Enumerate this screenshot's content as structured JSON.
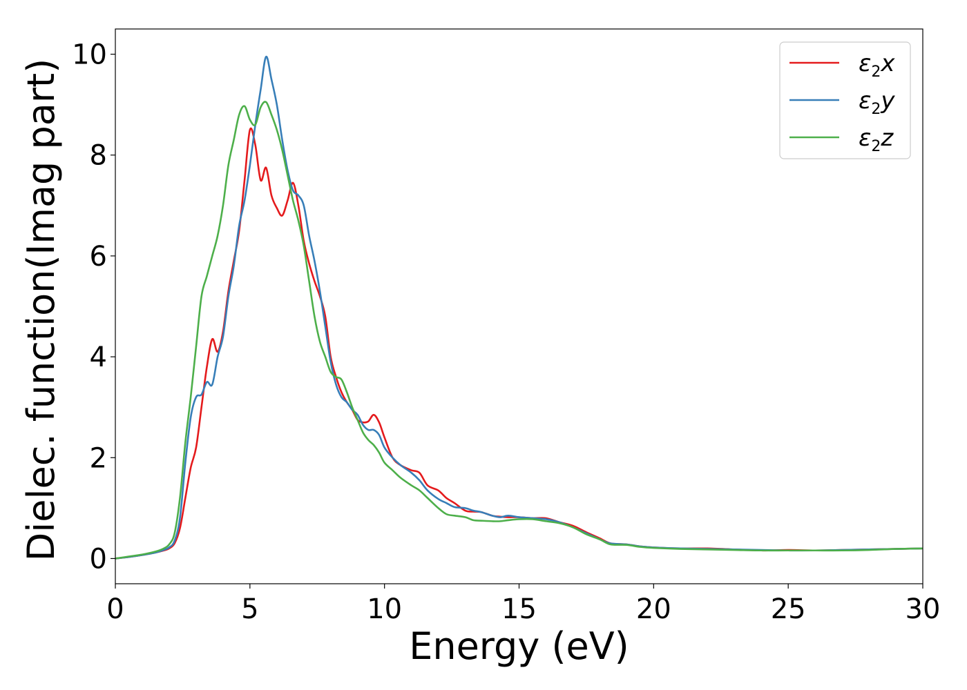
{
  "chart_data": {
    "type": "line",
    "xlabel": "Energy (eV)",
    "ylabel": "Dielec. function(Imag part)",
    "xlim": [
      0,
      30
    ],
    "ylim": [
      -0.5,
      10.5
    ],
    "xticks": [
      0,
      5,
      10,
      15,
      20,
      25,
      30
    ],
    "yticks": [
      0,
      2,
      4,
      6,
      8,
      10
    ],
    "grid": false,
    "legend_position": "top-right",
    "series": [
      {
        "name": "ε2x",
        "legend": {
          "base": "ε",
          "sub": "2",
          "axis": "x"
        },
        "color": "#e41a1c",
        "x": [
          0,
          0.5,
          1,
          1.5,
          1.8,
          2.0,
          2.2,
          2.4,
          2.6,
          2.8,
          3.0,
          3.2,
          3.4,
          3.6,
          3.8,
          4.0,
          4.2,
          4.4,
          4.6,
          4.8,
          5.0,
          5.2,
          5.4,
          5.6,
          5.8,
          6.0,
          6.2,
          6.4,
          6.6,
          6.8,
          7.0,
          7.2,
          7.4,
          7.6,
          7.8,
          8.0,
          8.2,
          8.4,
          8.6,
          8.8,
          9.0,
          9.2,
          9.4,
          9.6,
          9.8,
          10.0,
          10.3,
          10.6,
          11.0,
          11.3,
          11.6,
          12.0,
          12.3,
          12.6,
          13.0,
          13.3,
          13.6,
          14.0,
          14.3,
          14.6,
          15.0,
          15.5,
          16.0,
          16.5,
          17.0,
          17.5,
          18.0,
          18.4,
          19.0,
          19.5,
          20,
          21,
          22,
          23,
          24,
          25,
          26,
          27,
          28,
          29,
          30
        ],
        "values": [
          0,
          0.03,
          0.07,
          0.12,
          0.16,
          0.2,
          0.3,
          0.6,
          1.2,
          1.8,
          2.2,
          3.0,
          3.8,
          4.35,
          4.1,
          4.5,
          5.3,
          5.9,
          6.5,
          7.5,
          8.5,
          8.2,
          7.5,
          7.75,
          7.2,
          6.95,
          6.8,
          7.1,
          7.45,
          7.0,
          6.3,
          5.85,
          5.5,
          5.2,
          4.8,
          4.0,
          3.6,
          3.3,
          3.1,
          2.95,
          2.75,
          2.7,
          2.72,
          2.85,
          2.7,
          2.4,
          2.0,
          1.85,
          1.75,
          1.7,
          1.45,
          1.35,
          1.2,
          1.1,
          0.95,
          0.93,
          0.92,
          0.85,
          0.83,
          0.82,
          0.82,
          0.8,
          0.8,
          0.72,
          0.65,
          0.52,
          0.4,
          0.3,
          0.28,
          0.24,
          0.22,
          0.2,
          0.2,
          0.18,
          0.16,
          0.17,
          0.16,
          0.17,
          0.18,
          0.19,
          0.2
        ]
      },
      {
        "name": "ε2y",
        "legend": {
          "base": "ε",
          "sub": "2",
          "axis": "y"
        },
        "color": "#377eb8",
        "x": [
          0,
          0.5,
          1,
          1.5,
          1.8,
          2.0,
          2.2,
          2.4,
          2.6,
          2.8,
          3.0,
          3.2,
          3.4,
          3.6,
          3.8,
          4.0,
          4.2,
          4.4,
          4.6,
          4.8,
          5.0,
          5.2,
          5.4,
          5.6,
          5.8,
          6.0,
          6.2,
          6.4,
          6.6,
          6.8,
          7.0,
          7.2,
          7.4,
          7.6,
          7.8,
          8.0,
          8.2,
          8.4,
          8.6,
          8.8,
          9.0,
          9.2,
          9.4,
          9.6,
          9.8,
          10.0,
          10.3,
          10.6,
          11.0,
          11.3,
          11.6,
          12.0,
          12.3,
          12.6,
          13.0,
          13.3,
          13.6,
          14.0,
          14.3,
          14.6,
          15.0,
          15.5,
          16.0,
          16.5,
          17.0,
          17.5,
          18.0,
          18.4,
          19.0,
          19.5,
          20,
          21,
          22,
          23,
          24,
          25,
          26,
          27,
          28,
          29,
          30
        ],
        "values": [
          0,
          0.03,
          0.07,
          0.12,
          0.17,
          0.22,
          0.35,
          0.8,
          1.9,
          2.8,
          3.2,
          3.25,
          3.5,
          3.45,
          4.0,
          4.4,
          5.2,
          5.8,
          6.6,
          7.1,
          7.8,
          8.6,
          9.3,
          9.95,
          9.5,
          9.0,
          8.3,
          7.7,
          7.3,
          7.2,
          7.0,
          6.4,
          5.9,
          5.3,
          4.6,
          3.9,
          3.45,
          3.2,
          3.1,
          2.95,
          2.85,
          2.65,
          2.55,
          2.55,
          2.45,
          2.2,
          2.0,
          1.85,
          1.7,
          1.55,
          1.35,
          1.18,
          1.1,
          1.02,
          1.0,
          0.95,
          0.92,
          0.85,
          0.82,
          0.85,
          0.82,
          0.8,
          0.78,
          0.72,
          0.62,
          0.5,
          0.38,
          0.3,
          0.28,
          0.24,
          0.22,
          0.2,
          0.19,
          0.18,
          0.17,
          0.16,
          0.16,
          0.17,
          0.18,
          0.19,
          0.2
        ]
      },
      {
        "name": "ε2z",
        "legend": {
          "base": "ε",
          "sub": "2",
          "axis": "z"
        },
        "color": "#4daf4a",
        "x": [
          0,
          0.5,
          1,
          1.5,
          1.8,
          2.0,
          2.2,
          2.4,
          2.6,
          2.8,
          3.0,
          3.2,
          3.4,
          3.6,
          3.8,
          4.0,
          4.2,
          4.4,
          4.6,
          4.8,
          5.0,
          5.2,
          5.4,
          5.6,
          5.8,
          6.0,
          6.2,
          6.4,
          6.6,
          6.8,
          7.0,
          7.2,
          7.4,
          7.6,
          7.8,
          8.0,
          8.2,
          8.4,
          8.6,
          8.8,
          9.0,
          9.2,
          9.4,
          9.6,
          9.8,
          10.0,
          10.3,
          10.6,
          11.0,
          11.3,
          11.6,
          12.0,
          12.3,
          12.6,
          13.0,
          13.3,
          13.6,
          14.0,
          14.3,
          14.6,
          15.0,
          15.5,
          16.0,
          16.5,
          17.0,
          17.5,
          18.0,
          18.4,
          19.0,
          19.5,
          20,
          21,
          22,
          23,
          24,
          25,
          26,
          27,
          28,
          29,
          30
        ],
        "values": [
          0,
          0.04,
          0.08,
          0.14,
          0.2,
          0.28,
          0.5,
          1.2,
          2.3,
          3.2,
          4.2,
          5.2,
          5.6,
          6.0,
          6.4,
          7.0,
          7.8,
          8.3,
          8.8,
          8.97,
          8.7,
          8.6,
          8.95,
          9.05,
          8.8,
          8.5,
          8.1,
          7.6,
          7.1,
          6.7,
          6.2,
          5.5,
          4.8,
          4.3,
          4.0,
          3.7,
          3.6,
          3.55,
          3.3,
          3.0,
          2.75,
          2.5,
          2.35,
          2.25,
          2.1,
          1.9,
          1.75,
          1.6,
          1.45,
          1.35,
          1.2,
          1.0,
          0.88,
          0.85,
          0.82,
          0.76,
          0.75,
          0.74,
          0.74,
          0.76,
          0.78,
          0.78,
          0.74,
          0.7,
          0.62,
          0.48,
          0.38,
          0.28,
          0.27,
          0.23,
          0.21,
          0.19,
          0.18,
          0.17,
          0.16,
          0.16,
          0.16,
          0.16,
          0.17,
          0.19,
          0.2
        ]
      }
    ]
  }
}
